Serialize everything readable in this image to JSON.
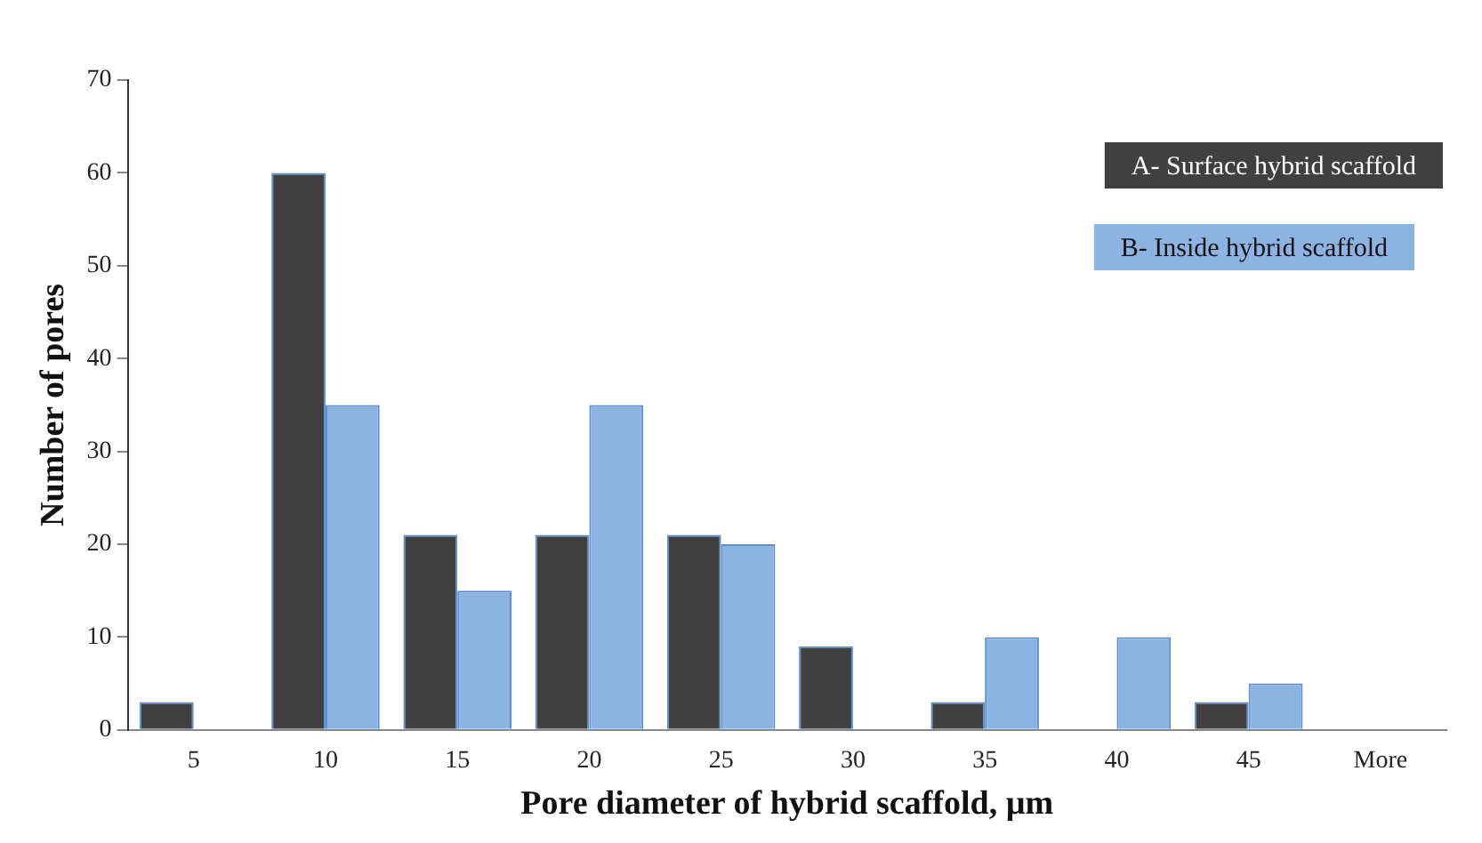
{
  "chart_data": {
    "type": "bar",
    "xlabel": "Pore diameter of hybrid scaffold, µm",
    "ylabel": "Number of pores",
    "categories": [
      "5",
      "10",
      "15",
      "20",
      "25",
      "30",
      "35",
      "40",
      "45",
      "More"
    ],
    "series": [
      {
        "name": "A- Surface hybrid scaffold",
        "color": "#404040",
        "values": [
          3,
          60,
          21,
          21,
          21,
          9,
          3,
          0,
          3,
          0
        ]
      },
      {
        "name": "B- Inside hybrid scaffold",
        "color": "#8db3e2",
        "values": [
          0,
          35,
          15,
          35,
          20,
          0,
          10,
          10,
          5,
          0
        ]
      }
    ],
    "ylim": [
      0,
      70
    ],
    "yticks": [
      0,
      10,
      20,
      30,
      40,
      50,
      60,
      70
    ],
    "grid": false,
    "legend": "top right"
  }
}
